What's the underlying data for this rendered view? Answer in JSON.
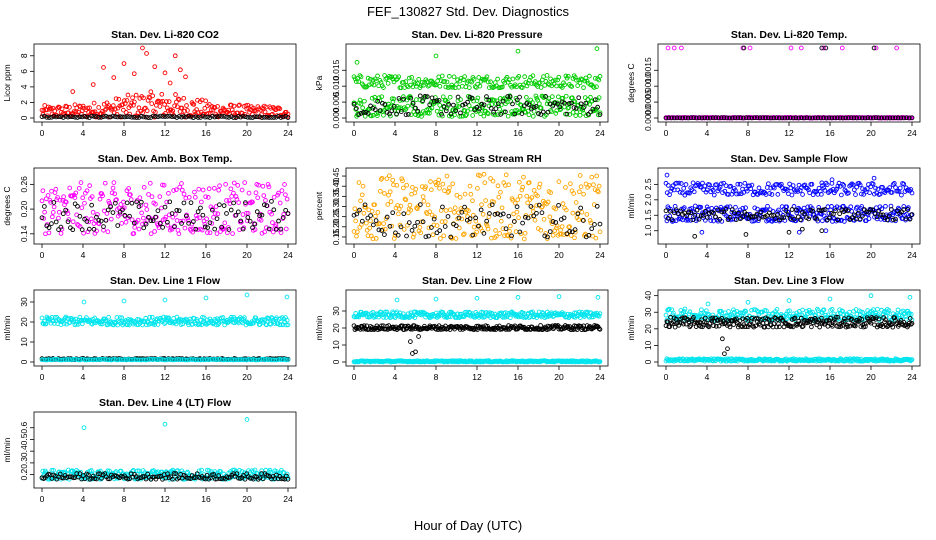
{
  "figure": {
    "title": "FEF_130827  Std. Dev. Diagnostics",
    "xlabel": "Hour of Day (UTC)"
  },
  "chart_data": [
    {
      "id": "co2",
      "type": "scatter",
      "title": "Stan. Dev. Li-820 CO2",
      "ylabel": "Licor ppm",
      "xlim": [
        0,
        24
      ],
      "ylim": [
        0,
        9
      ],
      "xticks": [
        "0",
        "4",
        "8",
        "12",
        "16",
        "20",
        "24"
      ],
      "yticks": [
        "0",
        "2",
        "4",
        "6",
        "8"
      ],
      "ytick_values": [
        0,
        2,
        4,
        6,
        8
      ],
      "series": [
        {
          "color": "#ff0000",
          "pattern": "band",
          "x": [
            0,
            24
          ],
          "y_low": 0.1,
          "y_high": 1.6,
          "density": 0.9,
          "hump": {
            "center": 11,
            "width": 5,
            "amp": 1.8
          }
        },
        {
          "color": "#ff0000",
          "pattern": "points",
          "x": [
            6,
            7,
            8,
            9.8,
            10.2,
            11,
            12,
            13,
            13.5,
            14,
            3,
            5,
            9,
            12.5
          ],
          "y": [
            6.5,
            5.2,
            7.0,
            9.0,
            8.3,
            6.6,
            5.8,
            8.0,
            6.2,
            5.3,
            3.4,
            4.3,
            5.7,
            4.5
          ]
        },
        {
          "color": "#000000",
          "pattern": "band",
          "x": [
            0,
            24
          ],
          "y_low": 0.05,
          "y_high": 0.25,
          "density": 0.35
        }
      ]
    },
    {
      "id": "pressure",
      "type": "scatter",
      "title": "Stan. Dev. Li-820 Pressure",
      "ylabel": "kPa",
      "xlim": [
        0,
        24
      ],
      "ylim": [
        0,
        0.022
      ],
      "xticks": [
        "0",
        "4",
        "8",
        "12",
        "16",
        "20",
        "24"
      ],
      "yticks": [
        "0.000",
        "0.005",
        "0.010",
        "0.015"
      ],
      "ytick_values": [
        0,
        0.005,
        0.01,
        0.015
      ],
      "series": [
        {
          "color": "#00cc00",
          "pattern": "band",
          "x": [
            0,
            24
          ],
          "y_low": 0.0005,
          "y_high": 0.007,
          "density": 0.95
        },
        {
          "color": "#00cc00",
          "pattern": "band",
          "x": [
            0,
            24
          ],
          "y_low": 0.0095,
          "y_high": 0.0135,
          "density": 0.7
        },
        {
          "color": "#00cc00",
          "pattern": "points",
          "x": [
            0.3,
            8,
            16,
            23.7
          ],
          "y": [
            0.0175,
            0.0195,
            0.021,
            0.0218
          ]
        },
        {
          "color": "#000000",
          "pattern": "band",
          "x": [
            0,
            24
          ],
          "y_low": 0.001,
          "y_high": 0.007,
          "density": 0.35
        }
      ]
    },
    {
      "id": "temp",
      "type": "scatter",
      "title": "Stan. Dev. Li-820 Temp.",
      "ylabel": "degrees C",
      "xlim": [
        0,
        24
      ],
      "ylim": [
        0,
        0.0022
      ],
      "xticks": [
        "0",
        "4",
        "8",
        "12",
        "16",
        "20",
        "24"
      ],
      "yticks": [
        "0.0000",
        "0.0005",
        "0.0010",
        "0.0015"
      ],
      "ytick_values": [
        0,
        0.0005,
        0.001,
        0.0015
      ],
      "series": [
        {
          "color": "#ff00ff",
          "pattern": "band",
          "x": [
            0,
            24
          ],
          "y_low": 0,
          "y_high": 2e-05,
          "density": 1.0
        },
        {
          "color": "#ff00ff",
          "pattern": "points",
          "x": [
            0.2,
            0.8,
            1.5,
            7.5,
            8.2,
            12.2,
            13.2,
            15.4,
            17.2,
            20.5,
            22.5
          ],
          "y": [
            0.0022,
            0.0022,
            0.0022,
            0.0022,
            0.0022,
            0.0022,
            0.0022,
            0.0022,
            0.0022,
            0.0022,
            0.0022
          ]
        },
        {
          "color": "#000000",
          "pattern": "points",
          "x": [
            7.6,
            15.2,
            15.6,
            20.3
          ],
          "y": [
            0.0022,
            0.0022,
            0.0022,
            0.0022
          ]
        },
        {
          "color": "#000000",
          "pattern": "band",
          "x": [
            0,
            24
          ],
          "y_low": 0,
          "y_high": 1e-05,
          "density": 0.3
        }
      ]
    },
    {
      "id": "ambbox",
      "type": "scatter",
      "title": "Stan. Dev. Amb. Box Temp.",
      "ylabel": "degrees C",
      "xlim": [
        0,
        24
      ],
      "ylim": [
        0.125,
        0.29
      ],
      "xticks": [
        "0",
        "4",
        "8",
        "12",
        "16",
        "20",
        "24"
      ],
      "yticks": [
        "0.14",
        "0.20",
        "0.26"
      ],
      "ytick_values": [
        0.14,
        0.2,
        0.26
      ],
      "series": [
        {
          "color": "#ff00ff",
          "pattern": "band",
          "x": [
            0,
            24
          ],
          "y_low": 0.14,
          "y_high": 0.265,
          "density": 0.95
        },
        {
          "color": "#000000",
          "pattern": "band",
          "x": [
            0,
            24
          ],
          "y_low": 0.15,
          "y_high": 0.22,
          "density": 0.35
        }
      ]
    },
    {
      "id": "rh",
      "type": "scatter",
      "title": "Stan. Dev. Gas Stream RH",
      "ylabel": "percent",
      "xlim": [
        0,
        24
      ],
      "ylim": [
        0.135,
        0.47
      ],
      "xticks": [
        "0",
        "4",
        "8",
        "12",
        "16",
        "20",
        "24"
      ],
      "yticks": [
        "0.15",
        "0.20",
        "0.25",
        "0.30",
        "0.35",
        "0.40",
        "0.45"
      ],
      "ytick_values": [
        0.15,
        0.2,
        0.25,
        0.3,
        0.35,
        0.4,
        0.45
      ],
      "series": [
        {
          "color": "#ffa500",
          "pattern": "band",
          "x": [
            0,
            24
          ],
          "y_low": 0.14,
          "y_high": 0.46,
          "density": 1.0
        },
        {
          "color": "#000000",
          "pattern": "band",
          "x": [
            0,
            24
          ],
          "y_low": 0.15,
          "y_high": 0.31,
          "density": 0.3
        }
      ]
    },
    {
      "id": "sample",
      "type": "scatter",
      "title": "Stan. Dev. Sample Flow",
      "ylabel": "ml/min",
      "xlim": [
        0,
        24
      ],
      "ylim": [
        0.7,
        2.9
      ],
      "xticks": [
        "0",
        "4",
        "8",
        "12",
        "16",
        "20",
        "24"
      ],
      "yticks": [
        "1.0",
        "1.5",
        "2.0",
        "2.5"
      ],
      "ytick_values": [
        1,
        1.5,
        2,
        2.5
      ],
      "series": [
        {
          "color": "#0000ff",
          "pattern": "band",
          "x": [
            0,
            24
          ],
          "y_low": 1.3,
          "y_high": 1.8,
          "density": 0.9
        },
        {
          "color": "#0000ff",
          "pattern": "band",
          "x": [
            0,
            24
          ],
          "y_low": 2.15,
          "y_high": 2.55,
          "density": 0.7
        },
        {
          "color": "#0000ff",
          "pattern": "points",
          "x": [
            0.1,
            3.5,
            13,
            15.6,
            16.2,
            20.3,
            15.2
          ],
          "y": [
            2.8,
            0.95,
            0.95,
            1.0,
            2.65,
            2.7,
            2.55
          ]
        },
        {
          "color": "#000000",
          "pattern": "band",
          "x": [
            0,
            24
          ],
          "y_low": 1.35,
          "y_high": 1.7,
          "density": 0.4
        },
        {
          "color": "#000000",
          "pattern": "points",
          "x": [
            2.8,
            7.8,
            12,
            13.3,
            15.2
          ],
          "y": [
            0.82,
            0.88,
            0.95,
            1.05,
            1.0
          ]
        }
      ]
    },
    {
      "id": "line1",
      "type": "scatter",
      "title": "Stan. Dev. Line 1 Flow",
      "ylabel": "ml/min",
      "xlim": [
        0,
        24
      ],
      "ylim": [
        0,
        34
      ],
      "xticks": [
        "0",
        "4",
        "8",
        "12",
        "16",
        "20",
        "24"
      ],
      "yticks": [
        "0",
        "10",
        "20",
        "30"
      ],
      "ytick_values": [
        0,
        10,
        20,
        30
      ],
      "series": [
        {
          "color": "#00e5ee",
          "pattern": "band",
          "x": [
            0,
            24
          ],
          "y_low": 18.5,
          "y_high": 22.5,
          "density": 1.0
        },
        {
          "color": "#00e5ee",
          "pattern": "points",
          "x": [
            4.1,
            8,
            12,
            16,
            20,
            23.9
          ],
          "y": [
            30,
            30.5,
            31,
            32,
            33.5,
            32.5
          ]
        },
        {
          "color": "#000000",
          "pattern": "band",
          "x": [
            0,
            24
          ],
          "y_low": 1.2,
          "y_high": 1.8,
          "density": 0.6
        },
        {
          "color": "#00e5ee",
          "pattern": "band",
          "x": [
            0,
            24
          ],
          "y_low": 1.0,
          "y_high": 1.4,
          "density": 0.5
        }
      ]
    },
    {
      "id": "line2",
      "type": "scatter",
      "title": "Stan. Dev. Line 2 Flow",
      "ylabel": "ml/min",
      "xlim": [
        0,
        24
      ],
      "ylim": [
        0,
        40
      ],
      "xticks": [
        "0",
        "4",
        "8",
        "12",
        "16",
        "20",
        "24"
      ],
      "yticks": [
        "0",
        "10",
        "20",
        "30"
      ],
      "ytick_values": [
        0,
        10,
        20,
        30
      ],
      "series": [
        {
          "color": "#00e5ee",
          "pattern": "band",
          "x": [
            0,
            24
          ],
          "y_low": 26.0,
          "y_high": 29.5,
          "density": 1.0
        },
        {
          "color": "#000000",
          "pattern": "band",
          "x": [
            0,
            24
          ],
          "y_low": 19.0,
          "y_high": 21.5,
          "density": 0.9
        },
        {
          "color": "#00e5ee",
          "pattern": "band",
          "x": [
            0,
            24
          ],
          "y_low": 0,
          "y_high": 0.8,
          "density": 1.0
        },
        {
          "color": "#00e5ee",
          "pattern": "points",
          "x": [
            4.2,
            8,
            12,
            16,
            20,
            23.8
          ],
          "y": [
            36.5,
            37,
            37.5,
            38,
            38.5,
            38
          ]
        },
        {
          "color": "#000000",
          "pattern": "points",
          "x": [
            5.7,
            6.0,
            5.5,
            6.3
          ],
          "y": [
            5,
            6,
            12,
            15
          ]
        }
      ]
    },
    {
      "id": "line3",
      "type": "scatter",
      "title": "Stan. Dev. Line 3 Flow",
      "ylabel": "ml/min",
      "xlim": [
        0,
        24
      ],
      "ylim": [
        0,
        41
      ],
      "xticks": [
        "0",
        "4",
        "8",
        "12",
        "16",
        "20",
        "24"
      ],
      "yticks": [
        "0",
        "10",
        "20",
        "30",
        "40"
      ],
      "ytick_values": [
        0,
        10,
        20,
        30,
        40
      ],
      "series": [
        {
          "color": "#00e5ee",
          "pattern": "band",
          "x": [
            0,
            24
          ],
          "y_low": 25.0,
          "y_high": 32.0,
          "density": 1.0
        },
        {
          "color": "#000000",
          "pattern": "band",
          "x": [
            0,
            24
          ],
          "y_low": 21.0,
          "y_high": 27.0,
          "density": 0.9
        },
        {
          "color": "#00e5ee",
          "pattern": "band",
          "x": [
            0,
            24
          ],
          "y_low": 0.5,
          "y_high": 2.0,
          "density": 1.0
        },
        {
          "color": "#00e5ee",
          "pattern": "points",
          "x": [
            4.1,
            8,
            12,
            16,
            20,
            23.8
          ],
          "y": [
            35,
            36,
            37,
            38,
            40,
            39
          ]
        },
        {
          "color": "#000000",
          "pattern": "points",
          "x": [
            5.7,
            6.0,
            5.5
          ],
          "y": [
            5,
            8,
            14
          ]
        }
      ]
    },
    {
      "id": "line4",
      "type": "scatter",
      "title": "Stan. Dev. Line 4 (LT) Flow",
      "ylabel": "ml/min",
      "xlim": [
        0,
        24
      ],
      "ylim": [
        0.12,
        0.7
      ],
      "xticks": [
        "0",
        "4",
        "8",
        "12",
        "16",
        "20",
        "24"
      ],
      "yticks": [
        "0.2",
        "0.3",
        "0.4",
        "0.5",
        "0.6"
      ],
      "ytick_values": [
        0.2,
        0.3,
        0.4,
        0.5,
        0.6
      ],
      "series": [
        {
          "color": "#00e5ee",
          "pattern": "band",
          "x": [
            0,
            24
          ],
          "y_low": 0.16,
          "y_high": 0.24,
          "density": 1.0
        },
        {
          "color": "#000000",
          "pattern": "band",
          "x": [
            0,
            24
          ],
          "y_low": 0.16,
          "y_high": 0.21,
          "density": 0.5
        },
        {
          "color": "#00e5ee",
          "pattern": "points",
          "x": [
            4.1,
            12,
            20
          ],
          "y": [
            0.6,
            0.63,
            0.67
          ]
        }
      ]
    }
  ]
}
